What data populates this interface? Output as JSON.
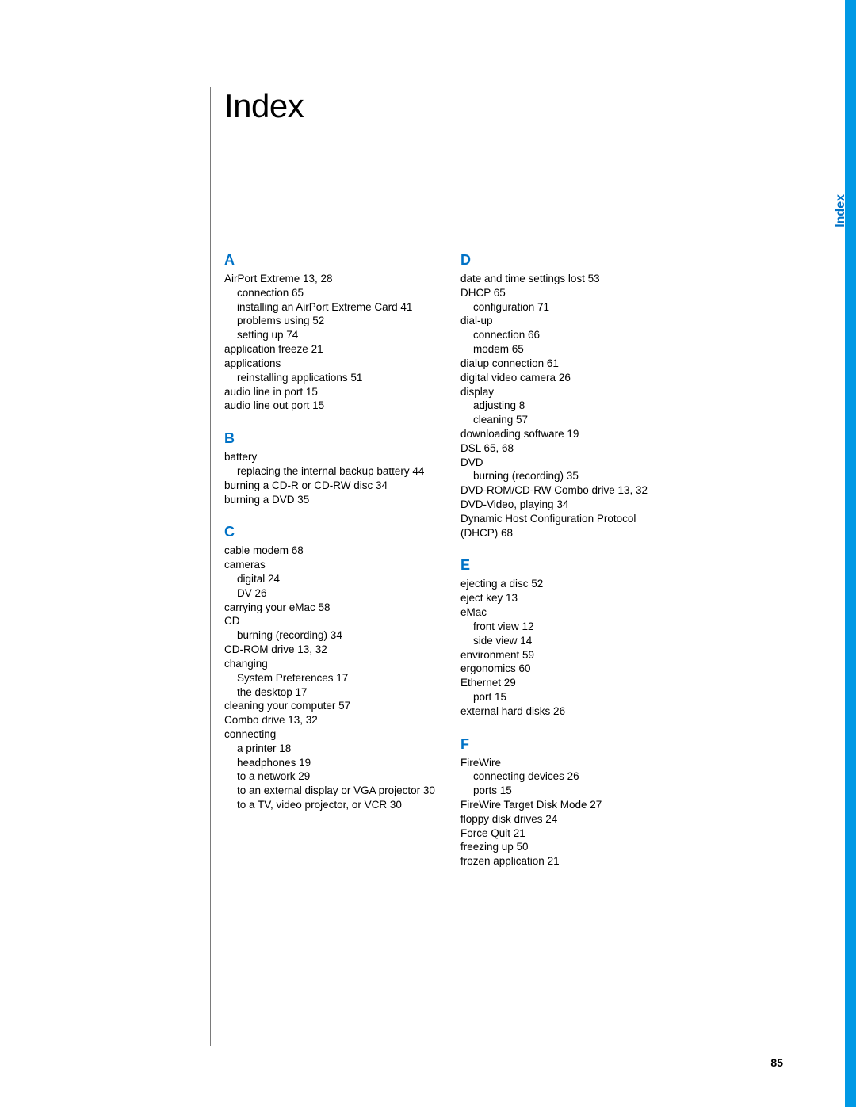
{
  "page": {
    "title": "Index",
    "side_tab": "Index",
    "page_number": "85",
    "colors": {
      "accent": "#0072c6",
      "stripe": "#0099e5",
      "text": "#000000",
      "rule": "#7a7a7a",
      "background": "#ffffff"
    }
  },
  "left_column": [
    {
      "letter": "A",
      "entries": [
        {
          "text": "AirPort Extreme  13, 28"
        },
        {
          "text": "connection  65",
          "indent": 1
        },
        {
          "text": "installing an AirPort Extreme Card  41",
          "indent": 1
        },
        {
          "text": "problems using  52",
          "indent": 1
        },
        {
          "text": "setting up  74",
          "indent": 1
        },
        {
          "text": "application freeze  21"
        },
        {
          "text": "applications"
        },
        {
          "text": "reinstalling applications  51",
          "indent": 1
        },
        {
          "text": "audio line in port  15"
        },
        {
          "text": "audio line out port  15"
        }
      ]
    },
    {
      "letter": "B",
      "entries": [
        {
          "text": "battery"
        },
        {
          "text": "replacing the internal backup battery  44",
          "indent": 1
        },
        {
          "text": "burning a CD-R or CD-RW disc  34"
        },
        {
          "text": "burning a DVD  35"
        }
      ]
    },
    {
      "letter": "C",
      "entries": [
        {
          "text": "cable modem  68"
        },
        {
          "text": "cameras"
        },
        {
          "text": "digital  24",
          "indent": 1
        },
        {
          "text": "DV  26",
          "indent": 1
        },
        {
          "text": "carrying your eMac  58"
        },
        {
          "text": "CD"
        },
        {
          "text": "burning (recording)  34",
          "indent": 1
        },
        {
          "text": "CD-ROM drive  13, 32"
        },
        {
          "text": "changing"
        },
        {
          "text": "System Preferences  17",
          "indent": 1
        },
        {
          "text": "the desktop  17",
          "indent": 1
        },
        {
          "text": "cleaning your computer  57"
        },
        {
          "text": "Combo drive  13, 32"
        },
        {
          "text": "connecting"
        },
        {
          "text": "a printer  18",
          "indent": 1
        },
        {
          "text": "headphones  19",
          "indent": 1
        },
        {
          "text": "to a network  29",
          "indent": 1
        },
        {
          "text": "to an external display or VGA projector  30",
          "indent": 1
        },
        {
          "text": "to a TV, video projector, or VCR  30",
          "indent": 1
        }
      ]
    }
  ],
  "right_column": [
    {
      "letter": "D",
      "entries": [
        {
          "text": "date and time settings lost  53"
        },
        {
          "text": "DHCP  65"
        },
        {
          "text": "configuration  71",
          "indent": 1
        },
        {
          "text": "dial-up"
        },
        {
          "text": "connection  66",
          "indent": 1
        },
        {
          "text": "modem  65",
          "indent": 1
        },
        {
          "text": "dialup connection  61"
        },
        {
          "text": "digital video camera  26"
        },
        {
          "text": "display"
        },
        {
          "text": "adjusting  8",
          "indent": 1
        },
        {
          "text": "cleaning  57",
          "indent": 1
        },
        {
          "text": "downloading software  19"
        },
        {
          "text": "DSL  65, 68"
        },
        {
          "text": "DVD"
        },
        {
          "text": "burning (recording)  35",
          "indent": 1
        },
        {
          "text": "DVD-ROM/CD-RW Combo drive  13, 32"
        },
        {
          "text": "DVD-Video, playing  34"
        },
        {
          "text": "Dynamic Host Configuration Protocol (DHCP)  68"
        }
      ]
    },
    {
      "letter": "E",
      "entries": [
        {
          "text": "ejecting a disc  52"
        },
        {
          "text": "eject key  13"
        },
        {
          "text": "eMac"
        },
        {
          "text": "front view  12",
          "indent": 1
        },
        {
          "text": "side view  14",
          "indent": 1
        },
        {
          "text": "environment  59"
        },
        {
          "text": "ergonomics  60"
        },
        {
          "text": "Ethernet  29"
        },
        {
          "text": "port  15",
          "indent": 1
        },
        {
          "text": "external hard disks  26"
        }
      ]
    },
    {
      "letter": "F",
      "entries": [
        {
          "text": "FireWire"
        },
        {
          "text": "connecting devices  26",
          "indent": 1
        },
        {
          "text": "ports  15",
          "indent": 1
        },
        {
          "text": "FireWire Target Disk Mode  27"
        },
        {
          "text": "floppy disk drives  24"
        },
        {
          "text": "Force Quit  21"
        },
        {
          "text": "freezing up  50"
        },
        {
          "text": "frozen application  21"
        }
      ]
    }
  ]
}
